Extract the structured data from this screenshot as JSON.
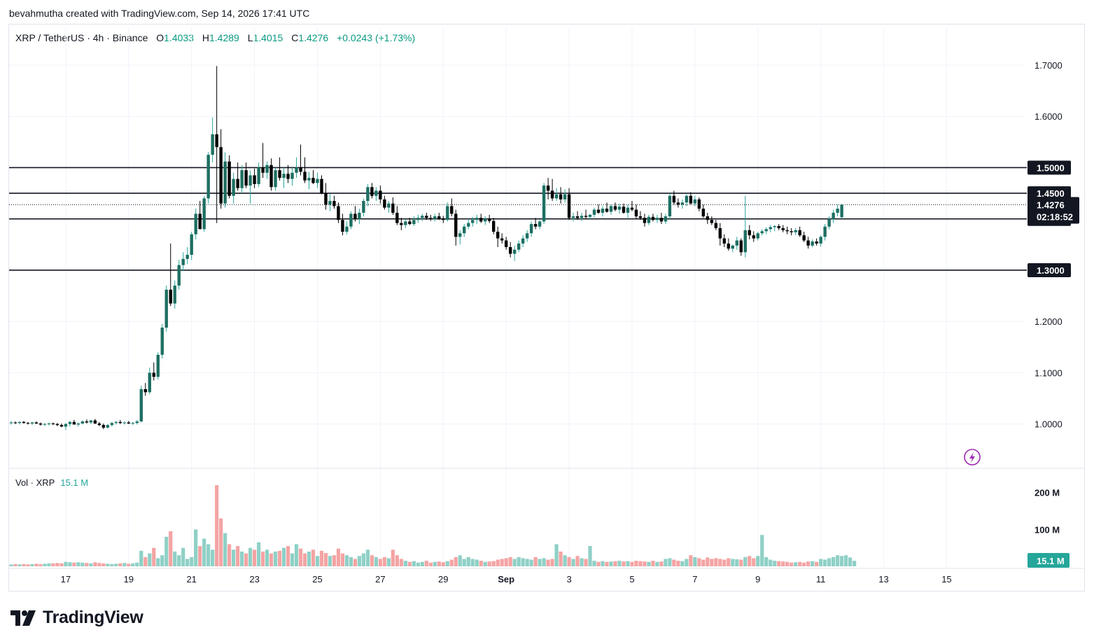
{
  "attribution": "bevahmutha created with TradingView.com, Sep 14, 2026 17:41 UTC",
  "legend": {
    "symbol": "XRP / TetherUS · 4h · Binance",
    "open_label": "O",
    "open": "1.4033",
    "high_label": "H",
    "high": "1.4289",
    "low_label": "L",
    "low": "1.4015",
    "close_label": "C",
    "close": "1.4276",
    "change": "+0.0243 (+1.73%)"
  },
  "volume_legend": {
    "label": "Vol · XRP",
    "value": "15.1 M"
  },
  "countdown": "02:18:52",
  "footer_logo": "TradingView",
  "colors": {
    "up": "#26a69a",
    "up_body": "#1e6f62",
    "down": "#000000",
    "down_wick": "#f23645",
    "vol_up": "#8fd0c6",
    "vol_down": "#f4a4a4",
    "level_line": "#131722"
  },
  "chart_data": {
    "type": "candlestick",
    "timeframe": "4h",
    "price_axis": {
      "ticks": [
        1.0,
        1.1,
        1.2,
        1.3,
        1.4,
        1.5,
        1.6,
        1.7
      ],
      "tick_labels": [
        "1.0000",
        "1.1000",
        "1.2000",
        "1.3000",
        "1.4000",
        "1.5000",
        "1.6000",
        "1.7000"
      ],
      "range": [
        0.915,
        1.745
      ]
    },
    "horizontal_levels": [
      {
        "value": 1.5,
        "label": "1.5000"
      },
      {
        "value": 1.45,
        "label": "1.4500"
      },
      {
        "value": 1.4,
        "label": "1.4000"
      },
      {
        "value": 1.3,
        "label": "1.3000"
      }
    ],
    "last_price": {
      "value": 1.4276,
      "label": "1.4276"
    },
    "x_axis": {
      "tick_labels": [
        "17",
        "19",
        "21",
        "23",
        "25",
        "27",
        "29",
        "Sep",
        "3",
        "5",
        "7",
        "9",
        "11",
        "13",
        "15"
      ],
      "tick_bar_index": [
        13,
        28,
        43,
        58,
        73,
        88,
        103,
        118,
        133,
        148,
        163,
        178,
        193,
        208,
        223
      ]
    },
    "volume_axis": {
      "tick_labels": [
        "200 M",
        "100 M"
      ],
      "ticks": [
        200,
        100
      ],
      "range": [
        0,
        245
      ],
      "last_label": "15.1 M",
      "last_value": 15.1
    },
    "candles_ohlc": [
      [
        1.002,
        1.006,
        0.999,
        1.003
      ],
      [
        1.003,
        1.005,
        1.0,
        1.002
      ],
      [
        1.002,
        1.005,
        0.999,
        1.004
      ],
      [
        1.004,
        1.006,
        1.001,
        1.002
      ],
      [
        1.002,
        1.004,
        0.999,
        1.001
      ],
      [
        1.001,
        1.004,
        0.998,
        1.003
      ],
      [
        1.003,
        1.005,
        1.0,
        1.001
      ],
      [
        1.001,
        1.003,
        0.997,
        0.999
      ],
      [
        0.999,
        1.002,
        0.996,
        1.0
      ],
      [
        1.0,
        1.003,
        0.997,
        1.001
      ],
      [
        1.001,
        1.003,
        0.998,
        1.0
      ],
      [
        1.0,
        1.002,
        0.996,
        0.998
      ],
      [
        0.998,
        1.001,
        0.994,
        0.995
      ],
      [
        0.995,
        1.002,
        0.988,
        1.0
      ],
      [
        1.0,
        1.006,
        0.995,
        1.004
      ],
      [
        1.004,
        1.008,
        1.0,
        0.999
      ],
      [
        0.999,
        1.003,
        0.995,
        1.001
      ],
      [
        1.001,
        1.007,
        0.999,
        1.005
      ],
      [
        1.005,
        1.009,
        1.001,
        1.003
      ],
      [
        1.003,
        1.008,
        1.0,
        1.007
      ],
      [
        1.007,
        1.01,
        1.0,
        1.001
      ],
      [
        1.001,
        1.004,
        0.996,
        0.998
      ],
      [
        0.998,
        1.001,
        0.99,
        0.993
      ],
      [
        0.993,
        1.0,
        0.991,
        0.998
      ],
      [
        0.998,
        1.004,
        0.995,
        1.002
      ],
      [
        1.002,
        1.006,
        0.999,
        1.004
      ],
      [
        1.004,
        1.008,
        1.0,
        1.002
      ],
      [
        1.002,
        1.005,
        0.999,
        1.003
      ],
      [
        1.003,
        1.006,
        1.0,
        1.001
      ],
      [
        1.001,
        1.004,
        0.998,
        1.002
      ],
      [
        1.002,
        1.008,
        0.999,
        1.005
      ],
      [
        1.005,
        1.075,
        1.003,
        1.068
      ],
      [
        1.068,
        1.08,
        1.055,
        1.062
      ],
      [
        1.062,
        1.11,
        1.058,
        1.1
      ],
      [
        1.1,
        1.12,
        1.085,
        1.092
      ],
      [
        1.092,
        1.14,
        1.087,
        1.135
      ],
      [
        1.135,
        1.195,
        1.128,
        1.188
      ],
      [
        1.188,
        1.27,
        1.18,
        1.262
      ],
      [
        1.262,
        1.352,
        1.23,
        1.235
      ],
      [
        1.235,
        1.28,
        1.225,
        1.27
      ],
      [
        1.27,
        1.32,
        1.262,
        1.31
      ],
      [
        1.31,
        1.335,
        1.298,
        1.322
      ],
      [
        1.322,
        1.345,
        1.312,
        1.33
      ],
      [
        1.33,
        1.375,
        1.32,
        1.37
      ],
      [
        1.37,
        1.42,
        1.36,
        1.41
      ],
      [
        1.41,
        1.435,
        1.395,
        1.38
      ],
      [
        1.38,
        1.445,
        1.375,
        1.44
      ],
      [
        1.44,
        1.53,
        1.43,
        1.525
      ],
      [
        1.525,
        1.598,
        1.51,
        1.565
      ],
      [
        1.565,
        1.698,
        1.392,
        1.54
      ],
      [
        1.54,
        1.575,
        1.42,
        1.43
      ],
      [
        1.43,
        1.53,
        1.422,
        1.512
      ],
      [
        1.512,
        1.524,
        1.44,
        1.445
      ],
      [
        1.445,
        1.49,
        1.43,
        1.478
      ],
      [
        1.478,
        1.51,
        1.455,
        1.46
      ],
      [
        1.46,
        1.505,
        1.45,
        1.495
      ],
      [
        1.495,
        1.51,
        1.46,
        1.465
      ],
      [
        1.465,
        1.495,
        1.43,
        1.485
      ],
      [
        1.485,
        1.498,
        1.46,
        1.468
      ],
      [
        1.468,
        1.51,
        1.462,
        1.5
      ],
      [
        1.5,
        1.548,
        1.48,
        1.49
      ],
      [
        1.49,
        1.512,
        1.478,
        1.505
      ],
      [
        1.505,
        1.518,
        1.455,
        1.462
      ],
      [
        1.462,
        1.5,
        1.455,
        1.495
      ],
      [
        1.495,
        1.52,
        1.475,
        1.48
      ],
      [
        1.48,
        1.5,
        1.46,
        1.488
      ],
      [
        1.488,
        1.505,
        1.47,
        1.478
      ],
      [
        1.478,
        1.5,
        1.465,
        1.49
      ],
      [
        1.49,
        1.52,
        1.48,
        1.5
      ],
      [
        1.5,
        1.545,
        1.485,
        1.492
      ],
      [
        1.492,
        1.52,
        1.47,
        1.475
      ],
      [
        1.475,
        1.492,
        1.458,
        1.48
      ],
      [
        1.48,
        1.495,
        1.468,
        1.47
      ],
      [
        1.47,
        1.49,
        1.46,
        1.478
      ],
      [
        1.478,
        1.485,
        1.448,
        1.45
      ],
      [
        1.45,
        1.47,
        1.418,
        1.428
      ],
      [
        1.428,
        1.448,
        1.415,
        1.435
      ],
      [
        1.435,
        1.445,
        1.42,
        1.425
      ],
      [
        1.425,
        1.432,
        1.392,
        1.398
      ],
      [
        1.398,
        1.41,
        1.368,
        1.375
      ],
      [
        1.375,
        1.395,
        1.37,
        1.385
      ],
      [
        1.385,
        1.415,
        1.38,
        1.41
      ],
      [
        1.41,
        1.425,
        1.395,
        1.4
      ],
      [
        1.4,
        1.42,
        1.39,
        1.412
      ],
      [
        1.412,
        1.44,
        1.405,
        1.435
      ],
      [
        1.435,
        1.468,
        1.425,
        1.462
      ],
      [
        1.462,
        1.47,
        1.44,
        1.445
      ],
      [
        1.445,
        1.462,
        1.435,
        1.455
      ],
      [
        1.455,
        1.465,
        1.43,
        1.438
      ],
      [
        1.438,
        1.445,
        1.418,
        1.422
      ],
      [
        1.422,
        1.435,
        1.412,
        1.43
      ],
      [
        1.43,
        1.442,
        1.408,
        1.412
      ],
      [
        1.412,
        1.425,
        1.388,
        1.392
      ],
      [
        1.392,
        1.402,
        1.378,
        1.388
      ],
      [
        1.388,
        1.4,
        1.382,
        1.395
      ],
      [
        1.395,
        1.402,
        1.388,
        1.39
      ],
      [
        1.39,
        1.405,
        1.386,
        1.398
      ],
      [
        1.398,
        1.408,
        1.392,
        1.402
      ],
      [
        1.402,
        1.41,
        1.396,
        1.406
      ],
      [
        1.406,
        1.412,
        1.398,
        1.402
      ],
      [
        1.402,
        1.408,
        1.396,
        1.4
      ],
      [
        1.4,
        1.41,
        1.395,
        1.405
      ],
      [
        1.405,
        1.412,
        1.398,
        1.4
      ],
      [
        1.4,
        1.406,
        1.392,
        1.398
      ],
      [
        1.398,
        1.432,
        1.395,
        1.425
      ],
      [
        1.425,
        1.44,
        1.405,
        1.41
      ],
      [
        1.41,
        1.418,
        1.348,
        1.365
      ],
      [
        1.365,
        1.378,
        1.35,
        1.372
      ],
      [
        1.372,
        1.39,
        1.365,
        1.385
      ],
      [
        1.385,
        1.4,
        1.38,
        1.392
      ],
      [
        1.392,
        1.404,
        1.385,
        1.398
      ],
      [
        1.398,
        1.408,
        1.39,
        1.402
      ],
      [
        1.402,
        1.41,
        1.392,
        1.395
      ],
      [
        1.395,
        1.405,
        1.388,
        1.4
      ],
      [
        1.4,
        1.408,
        1.392,
        1.396
      ],
      [
        1.396,
        1.402,
        1.37,
        1.375
      ],
      [
        1.375,
        1.385,
        1.345,
        1.362
      ],
      [
        1.362,
        1.372,
        1.352,
        1.358
      ],
      [
        1.358,
        1.365,
        1.34,
        1.345
      ],
      [
        1.345,
        1.355,
        1.325,
        1.332
      ],
      [
        1.332,
        1.348,
        1.318,
        1.34
      ],
      [
        1.34,
        1.358,
        1.335,
        1.352
      ],
      [
        1.352,
        1.368,
        1.345,
        1.362
      ],
      [
        1.362,
        1.378,
        1.355,
        1.372
      ],
      [
        1.372,
        1.395,
        1.365,
        1.39
      ],
      [
        1.39,
        1.402,
        1.38,
        1.385
      ],
      [
        1.385,
        1.398,
        1.38,
        1.395
      ],
      [
        1.395,
        1.47,
        1.39,
        1.465
      ],
      [
        1.465,
        1.48,
        1.438,
        1.455
      ],
      [
        1.455,
        1.478,
        1.435,
        1.44
      ],
      [
        1.44,
        1.46,
        1.435,
        1.448
      ],
      [
        1.448,
        1.462,
        1.43,
        1.438
      ],
      [
        1.438,
        1.458,
        1.432,
        1.448
      ],
      [
        1.448,
        1.46,
        1.398,
        1.402
      ],
      [
        1.402,
        1.412,
        1.395,
        1.405
      ],
      [
        1.405,
        1.415,
        1.398,
        1.402
      ],
      [
        1.402,
        1.412,
        1.396,
        1.406
      ],
      [
        1.406,
        1.418,
        1.4,
        1.404
      ],
      [
        1.404,
        1.41,
        1.398,
        1.408
      ],
      [
        1.408,
        1.422,
        1.403,
        1.418
      ],
      [
        1.418,
        1.428,
        1.41,
        1.412
      ],
      [
        1.412,
        1.425,
        1.405,
        1.42
      ],
      [
        1.42,
        1.432,
        1.412,
        1.414
      ],
      [
        1.414,
        1.428,
        1.408,
        1.425
      ],
      [
        1.425,
        1.432,
        1.415,
        1.418
      ],
      [
        1.418,
        1.43,
        1.41,
        1.424
      ],
      [
        1.424,
        1.43,
        1.41,
        1.412
      ],
      [
        1.412,
        1.428,
        1.402,
        1.422
      ],
      [
        1.422,
        1.435,
        1.415,
        1.418
      ],
      [
        1.418,
        1.428,
        1.4,
        1.405
      ],
      [
        1.405,
        1.415,
        1.398,
        1.402
      ],
      [
        1.402,
        1.41,
        1.385,
        1.392
      ],
      [
        1.392,
        1.408,
        1.388,
        1.404
      ],
      [
        1.404,
        1.41,
        1.395,
        1.398
      ],
      [
        1.398,
        1.408,
        1.392,
        1.402
      ],
      [
        1.402,
        1.412,
        1.39,
        1.395
      ],
      [
        1.395,
        1.41,
        1.39,
        1.405
      ],
      [
        1.405,
        1.45,
        1.4,
        1.445
      ],
      [
        1.445,
        1.455,
        1.428,
        1.432
      ],
      [
        1.432,
        1.44,
        1.422,
        1.428
      ],
      [
        1.428,
        1.438,
        1.42,
        1.432
      ],
      [
        1.432,
        1.448,
        1.425,
        1.445
      ],
      [
        1.445,
        1.452,
        1.428,
        1.43
      ],
      [
        1.43,
        1.445,
        1.425,
        1.438
      ],
      [
        1.438,
        1.442,
        1.415,
        1.42
      ],
      [
        1.42,
        1.428,
        1.402,
        1.405
      ],
      [
        1.405,
        1.412,
        1.39,
        1.398
      ],
      [
        1.398,
        1.405,
        1.388,
        1.392
      ],
      [
        1.392,
        1.398,
        1.378,
        1.382
      ],
      [
        1.382,
        1.392,
        1.348,
        1.362
      ],
      [
        1.362,
        1.37,
        1.345,
        1.352
      ],
      [
        1.352,
        1.362,
        1.338,
        1.342
      ],
      [
        1.342,
        1.35,
        1.335,
        1.348
      ],
      [
        1.348,
        1.365,
        1.34,
        1.358
      ],
      [
        1.358,
        1.362,
        1.328,
        1.335
      ],
      [
        1.335,
        1.445,
        1.325,
        1.378
      ],
      [
        1.378,
        1.388,
        1.36,
        1.368
      ],
      [
        1.368,
        1.376,
        1.355,
        1.362
      ],
      [
        1.362,
        1.375,
        1.358,
        1.372
      ],
      [
        1.372,
        1.38,
        1.368,
        1.376
      ],
      [
        1.376,
        1.384,
        1.37,
        1.38
      ],
      [
        1.38,
        1.388,
        1.374,
        1.384
      ],
      [
        1.384,
        1.388,
        1.376,
        1.386
      ],
      [
        1.386,
        1.39,
        1.378,
        1.382
      ],
      [
        1.382,
        1.388,
        1.374,
        1.378
      ],
      [
        1.378,
        1.385,
        1.37,
        1.376
      ],
      [
        1.376,
        1.382,
        1.368,
        1.374
      ],
      [
        1.374,
        1.382,
        1.368,
        1.378
      ],
      [
        1.378,
        1.385,
        1.365,
        1.368
      ],
      [
        1.368,
        1.375,
        1.355,
        1.358
      ],
      [
        1.358,
        1.365,
        1.342,
        1.348
      ],
      [
        1.348,
        1.36,
        1.345,
        1.356
      ],
      [
        1.356,
        1.362,
        1.348,
        1.352
      ],
      [
        1.352,
        1.368,
        1.346,
        1.365
      ],
      [
        1.365,
        1.39,
        1.358,
        1.385
      ],
      [
        1.385,
        1.405,
        1.38,
        1.4
      ],
      [
        1.4,
        1.418,
        1.392,
        1.412
      ],
      [
        1.412,
        1.428,
        1.405,
        1.42
      ],
      [
        1.4033,
        1.4289,
        1.4015,
        1.4276
      ]
    ],
    "volume_millions": [
      5,
      6,
      5,
      6,
      5,
      6,
      7,
      6,
      7,
      8,
      8,
      9,
      8,
      12,
      11,
      10,
      11,
      10,
      9,
      8,
      11,
      9,
      8,
      7,
      6,
      7,
      8,
      9,
      7,
      8,
      10,
      42,
      25,
      35,
      50,
      22,
      30,
      80,
      95,
      40,
      30,
      50,
      20,
      25,
      100,
      55,
      75,
      60,
      45,
      220,
      130,
      90,
      60,
      45,
      55,
      40,
      35,
      50,
      45,
      65,
      40,
      45,
      35,
      40,
      42,
      50,
      55,
      35,
      60,
      48,
      35,
      40,
      45,
      28,
      42,
      36,
      28,
      30,
      48,
      35,
      30,
      25,
      20,
      28,
      35,
      45,
      30,
      25,
      20,
      25,
      22,
      45,
      30,
      20,
      15,
      12,
      14,
      10,
      12,
      15,
      10,
      12,
      13,
      11,
      14,
      18,
      25,
      30,
      20,
      25,
      20,
      18,
      15,
      12,
      13,
      14,
      18,
      20,
      22,
      25,
      20,
      25,
      22,
      20,
      18,
      25,
      20,
      22,
      18,
      20,
      60,
      40,
      30,
      25,
      20,
      28,
      22,
      20,
      55,
      15,
      12,
      14,
      12,
      13,
      14,
      15,
      13,
      14,
      12,
      15,
      14,
      13,
      12,
      15,
      12,
      13,
      20,
      22,
      18,
      15,
      14,
      20,
      30,
      25,
      22,
      18,
      24,
      20,
      22,
      20,
      18,
      22,
      20,
      19,
      18,
      25,
      28,
      22,
      28,
      85,
      25,
      18,
      15,
      14,
      13,
      12,
      10,
      11,
      12,
      10,
      13,
      14,
      12,
      20,
      18,
      22,
      25,
      30,
      28,
      30,
      24,
      15
    ]
  }
}
